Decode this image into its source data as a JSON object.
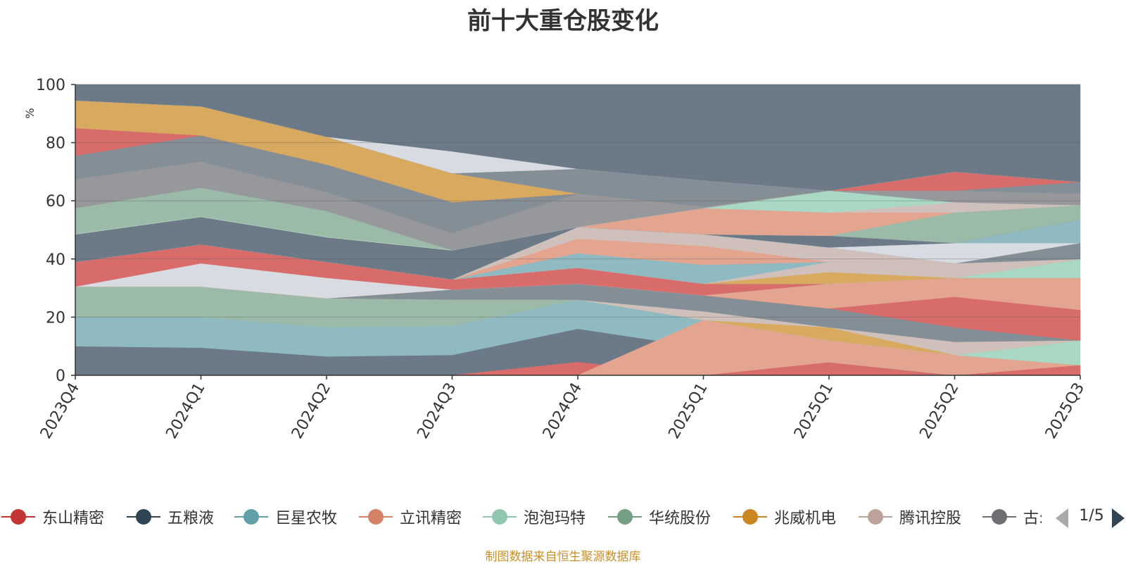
{
  "chart_data": {
    "type": "area",
    "title": "前十大重仓股变化",
    "ylabel": "%",
    "ylim": [
      0,
      100
    ],
    "yticks": [
      "0",
      "20",
      "40",
      "60",
      "80",
      "100"
    ],
    "categories": [
      "2023Q4",
      "2024Q1",
      "2024Q2",
      "2024Q3",
      "2024Q4",
      "2025Q1",
      "2025Q1",
      "2025Q2",
      "2025Q3"
    ],
    "bands": [
      {
        "color": "#6b7a86",
        "lower": [
          0,
          0,
          0,
          0,
          0,
          0,
          0,
          0,
          0
        ],
        "upper": [
          10,
          9.5,
          6.5,
          7,
          16,
          9.5,
          4.5,
          0,
          0
        ]
      },
      {
        "color": "#d76c6a",
        "lower": [
          0,
          0,
          0,
          0,
          0,
          0,
          0,
          0,
          0
        ],
        "upper": [
          0,
          0,
          0,
          0,
          4.5,
          0,
          4.5,
          0,
          3.5
        ]
      },
      {
        "color": "#8fbac2",
        "lower": [
          10,
          9.5,
          6.5,
          7,
          16,
          9.5,
          4.5,
          0,
          0
        ],
        "upper": [
          20,
          20,
          16.5,
          17,
          26,
          19,
          4.5,
          0,
          0
        ]
      },
      {
        "color": "#e3a58f",
        "lower": [
          0,
          0,
          0,
          0,
          0,
          0,
          4.5,
          0,
          3.5
        ],
        "upper": [
          0,
          0,
          0,
          0,
          0,
          19,
          12,
          7,
          3.5
        ]
      },
      {
        "color": "#9cbaa8",
        "lower": [
          20,
          20,
          16.5,
          17,
          26,
          19,
          12,
          7,
          3.5
        ],
        "upper": [
          30.5,
          30.5,
          26.5,
          26,
          26,
          19,
          12,
          7,
          3.5
        ]
      },
      {
        "color": "#a9d9c4",
        "lower": [
          30.5,
          30.5,
          26.5,
          26,
          26,
          19,
          12,
          7,
          3.5
        ],
        "upper": [
          30.5,
          30.5,
          26.5,
          26,
          26,
          19,
          12,
          7,
          12
        ]
      },
      {
        "color": "#d8aa60",
        "lower": [
          30.5,
          30.5,
          26.5,
          26,
          26,
          19,
          12,
          7,
          12
        ],
        "upper": [
          30.5,
          30.5,
          26.5,
          26,
          26,
          19,
          16.5,
          7,
          12
        ]
      },
      {
        "color": "#cfc0bb",
        "lower": [
          30.5,
          30.5,
          26.5,
          26,
          26,
          19,
          16.5,
          7,
          12
        ],
        "upper": [
          30.5,
          30.5,
          26.5,
          26,
          26,
          22,
          16.5,
          11.5,
          12
        ]
      },
      {
        "color": "#848e96",
        "lower": [
          30.5,
          30.5,
          26.5,
          26,
          26,
          22,
          16.5,
          11.5,
          12
        ],
        "upper": [
          30.5,
          30.5,
          26.5,
          29.5,
          31.5,
          27.5,
          23,
          16.5,
          12
        ]
      },
      {
        "color": "#d76c6a",
        "lower": [
          30.5,
          30.5,
          26.5,
          29.5,
          31.5,
          27.5,
          23,
          16.5,
          12
        ],
        "upper": [
          30.5,
          30.5,
          26.5,
          29.5,
          31.5,
          27.5,
          23,
          27,
          22.5
        ]
      },
      {
        "color": "#e3a58f",
        "lower": [
          30.5,
          30.5,
          26.5,
          29.5,
          31.5,
          27.5,
          23,
          27,
          22.5
        ],
        "upper": [
          30.5,
          30.5,
          26.5,
          29.5,
          31.5,
          27.5,
          31.5,
          33.5,
          33.5
        ]
      },
      {
        "color": "#d8dbe2",
        "lower": [
          30.5,
          30.5,
          26.5,
          29.5,
          31.5,
          27.5,
          31.5,
          33.5,
          33.5
        ],
        "upper": [
          30.5,
          38.5,
          33.5,
          29.5,
          31.5,
          27.5,
          31.5,
          33.5,
          33.5
        ]
      },
      {
        "color": "#d76c6a",
        "lower": [
          30.5,
          38.5,
          33.5,
          29.5,
          31.5,
          27.5,
          31.5,
          33.5,
          33.5
        ],
        "upper": [
          39,
          45,
          39,
          33,
          37,
          31.5,
          31.5,
          33.5,
          33.5
        ]
      },
      {
        "color": "#a9d9c4",
        "lower": [
          39,
          45,
          39,
          33,
          37,
          31.5,
          31.5,
          33.5,
          33.5
        ],
        "upper": [
          39,
          45,
          39,
          33,
          37,
          31.5,
          31.5,
          33.5,
          40
        ]
      },
      {
        "color": "#d8aa60",
        "lower": [
          39,
          45,
          39,
          33,
          37,
          31.5,
          31.5,
          33.5,
          40
        ],
        "upper": [
          39,
          45,
          39,
          33,
          37,
          31.5,
          35.5,
          33.5,
          40
        ]
      },
      {
        "color": "#cfc0bb",
        "lower": [
          39,
          45,
          39,
          33,
          37,
          31.5,
          35.5,
          33.5,
          40
        ],
        "upper": [
          39,
          45,
          39,
          33,
          37,
          31.5,
          39,
          38.5,
          40
        ]
      },
      {
        "color": "#8fbac2",
        "lower": [
          39,
          45,
          39,
          33,
          37,
          31.5,
          39,
          38.5,
          40
        ],
        "upper": [
          39,
          45,
          39,
          33,
          42,
          38,
          39,
          38.5,
          40
        ]
      },
      {
        "color": "#e3a58f",
        "lower": [
          39,
          45,
          39,
          33,
          42,
          38,
          39,
          38.5,
          40
        ],
        "upper": [
          39,
          45,
          39,
          33,
          47,
          44.5,
          39,
          38.5,
          40
        ]
      },
      {
        "color": "#cfc0bb",
        "lower": [
          39,
          45,
          39,
          33,
          47,
          44.5,
          39,
          38.5,
          40
        ],
        "upper": [
          39,
          45,
          39,
          33,
          51,
          48.5,
          44,
          38.5,
          40
        ]
      },
      {
        "color": "#848e96",
        "lower": [
          39,
          45,
          39,
          33,
          51,
          48.5,
          44,
          38.5,
          40
        ],
        "upper": [
          39,
          45,
          39,
          33,
          51,
          48.5,
          44,
          38.5,
          45.5
        ]
      },
      {
        "color": "#d8dbe2",
        "lower": [
          39,
          45,
          39,
          33,
          51,
          48.5,
          44,
          38.5,
          45.5
        ],
        "upper": [
          39,
          45,
          39,
          33,
          51,
          48.5,
          44,
          45.5,
          45.5
        ]
      },
      {
        "color": "#8fbac2",
        "lower": [
          39,
          45,
          39,
          33,
          51,
          48.5,
          44,
          45.5,
          45.5
        ],
        "upper": [
          39,
          45,
          39,
          33,
          51,
          48.5,
          44,
          45.5,
          53.5
        ]
      },
      {
        "color": "#6b7a86",
        "lower": [
          39,
          45,
          39,
          33,
          51,
          48.5,
          44,
          45.5,
          53.5
        ],
        "upper": [
          48.5,
          54.5,
          47.5,
          43,
          51,
          48.5,
          48,
          45.5,
          53.5
        ]
      },
      {
        "color": "#9cbaa8",
        "lower": [
          48.5,
          54.5,
          47.5,
          43,
          51,
          48.5,
          48,
          45.5,
          53.5
        ],
        "upper": [
          57.5,
          64.5,
          56.5,
          43,
          51,
          48.5,
          48,
          56,
          58.5
        ]
      },
      {
        "color": "#e3a58f",
        "lower": [
          48.5,
          54.5,
          47.5,
          43,
          51,
          48.5,
          48,
          56,
          58.5
        ],
        "upper": [
          48.5,
          54.5,
          47.5,
          43,
          51,
          57.5,
          56,
          56,
          58.5
        ]
      },
      {
        "color": "#cfc0bb",
        "lower": [
          48.5,
          54.5,
          47.5,
          43,
          51,
          57.5,
          56,
          56,
          58.5
        ],
        "upper": [
          48.5,
          54.5,
          47.5,
          43,
          51,
          57.5,
          56,
          59.5,
          58.5
        ]
      },
      {
        "color": "#a9d9c4",
        "lower": [
          48.5,
          54.5,
          47.5,
          43,
          51,
          57.5,
          56,
          59.5,
          58.5
        ],
        "upper": [
          48.5,
          54.5,
          47.5,
          43,
          51,
          57.5,
          63.5,
          59.5,
          58.5
        ]
      },
      {
        "color": "#97989c",
        "lower": [
          57.5,
          64.5,
          56.5,
          43,
          51,
          57.5,
          63.5,
          59.5,
          58.5
        ],
        "upper": [
          67.5,
          73.5,
          63,
          49,
          62.5,
          58,
          63.5,
          63.5,
          62.5
        ]
      },
      {
        "color": "#848e96",
        "lower": [
          67.5,
          73.5,
          63,
          49,
          62.5,
          58,
          63.5,
          63.5,
          62.5
        ],
        "upper": [
          75.5,
          82.5,
          72.5,
          59.5,
          62.5,
          58,
          63.5,
          63.5,
          66.5
        ]
      },
      {
        "color": "#d76c6a",
        "lower": [
          75.5,
          82.5,
          72.5,
          59.5,
          62.5,
          58,
          63.5,
          63.5,
          66.5
        ],
        "upper": [
          85,
          82.5,
          72.5,
          59.5,
          62.5,
          58,
          63.5,
          70,
          66.5
        ]
      },
      {
        "color": "#d8aa60",
        "lower": [
          85,
          82.5,
          72.5,
          59.5,
          62.5,
          58,
          63.5,
          70,
          66.5
        ],
        "upper": [
          94.5,
          92.5,
          82,
          69.5,
          62.5,
          58,
          63.5,
          70,
          66.5
        ]
      },
      {
        "color": "#848e96",
        "lower": [
          94.5,
          92.5,
          82,
          69.5,
          62.5,
          58,
          63.5,
          70,
          66.5
        ],
        "upper": [
          94.5,
          92.5,
          82,
          69.5,
          71,
          67,
          63.5,
          70,
          66.5
        ]
      },
      {
        "color": "#d8dbe2",
        "lower": [
          94.5,
          92.5,
          82,
          69.5,
          71,
          67,
          63.5,
          70,
          66.5
        ],
        "upper": [
          94.5,
          92.5,
          82,
          77,
          71,
          67,
          63.5,
          70,
          66.5
        ]
      },
      {
        "color": "#6b7a86",
        "lower": [
          94.5,
          92.5,
          82,
          77,
          71,
          67,
          63.5,
          70,
          66.5
        ],
        "upper": [
          100,
          100,
          100,
          100,
          100,
          100,
          100,
          100,
          100
        ]
      }
    ],
    "legend": [
      {
        "name": "东山精密",
        "color": "#c23531"
      },
      {
        "name": "五粮液",
        "color": "#2f4554"
      },
      {
        "name": "巨星农牧",
        "color": "#61a0a8"
      },
      {
        "name": "立讯精密",
        "color": "#d48265"
      },
      {
        "name": "泡泡玛特",
        "color": "#91c7ae"
      },
      {
        "name": "华统股份",
        "color": "#749f83"
      },
      {
        "name": "兆威机电",
        "color": "#ca8622"
      },
      {
        "name": "腾讯控股",
        "color": "#bda29a"
      },
      {
        "name": "古:",
        "color": "#6e7074"
      }
    ]
  },
  "legend_pager": {
    "text": "1/5"
  },
  "footnote": "制图数据来自恒生聚源数据库"
}
